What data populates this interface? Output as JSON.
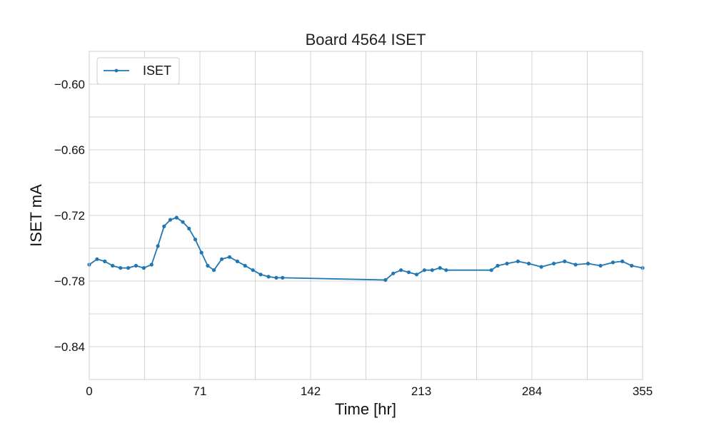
{
  "chart_data": {
    "type": "line",
    "title": "Board 4564 ISET",
    "xlabel": "Time [hr]",
    "ylabel": "ISET mA",
    "xlim": [
      0,
      355
    ],
    "ylim": [
      -0.87,
      -0.57
    ],
    "x_ticks": [
      "0",
      "71",
      "142",
      "213",
      "284",
      "355"
    ],
    "x_minor_grid": [
      35.5,
      106.5,
      177.5,
      248.5,
      319.5
    ],
    "y_ticks": [
      "−0.60",
      "−0.66",
      "−0.72",
      "−0.78",
      "−0.84"
    ],
    "y_minor_grid": [
      -0.63,
      -0.69,
      -0.75,
      -0.81
    ],
    "grid": true,
    "legend": {
      "position": "top-left",
      "entries": [
        "ISET"
      ]
    },
    "series": [
      {
        "name": "ISET",
        "color": "#1f77b4",
        "marker": "point",
        "x": [
          0,
          5,
          10,
          15,
          20,
          25,
          30,
          35,
          40,
          44,
          48,
          52,
          56,
          60,
          64,
          68,
          72,
          76,
          80,
          85,
          90,
          95,
          100,
          105,
          110,
          115,
          120,
          124,
          190,
          195,
          200,
          205,
          210,
          215,
          220,
          225,
          229,
          258,
          262,
          268,
          275,
          282,
          290,
          298,
          305,
          312,
          320,
          328,
          336,
          342,
          348,
          355
        ],
        "y": [
          -0.765,
          -0.76,
          -0.762,
          -0.766,
          -0.768,
          -0.768,
          -0.766,
          -0.768,
          -0.765,
          -0.748,
          -0.73,
          -0.724,
          -0.722,
          -0.726,
          -0.732,
          -0.742,
          -0.754,
          -0.766,
          -0.77,
          -0.76,
          -0.758,
          -0.762,
          -0.766,
          -0.77,
          -0.774,
          -0.776,
          -0.777,
          -0.777,
          -0.779,
          -0.773,
          -0.77,
          -0.772,
          -0.774,
          -0.77,
          -0.77,
          -0.768,
          -0.77,
          -0.77,
          -0.766,
          -0.764,
          -0.762,
          -0.764,
          -0.767,
          -0.764,
          -0.762,
          -0.765,
          -0.764,
          -0.766,
          -0.763,
          -0.762,
          -0.766,
          -0.768
        ]
      }
    ]
  }
}
